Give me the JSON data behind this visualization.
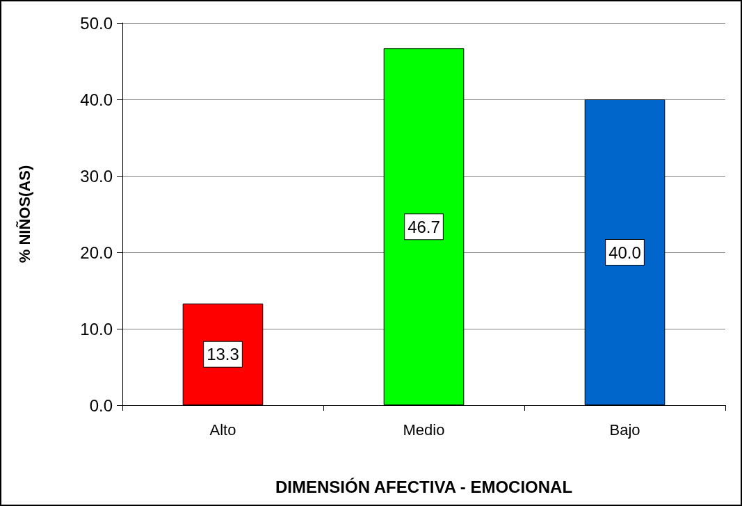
{
  "chart_data": {
    "type": "bar",
    "xlabel": "DIMENSIÓN AFECTIVA - EMOCIONAL",
    "ylabel": "% NIÑOS(AS)",
    "categories": [
      "Alto",
      "Medio",
      "Bajo"
    ],
    "values": [
      13.3,
      46.7,
      40.0
    ],
    "colors": [
      "#ff0000",
      "#00ff00",
      "#0066cc"
    ],
    "value_labels": [
      "13.3",
      "46.7",
      "40.0"
    ],
    "ylim": [
      0,
      50
    ],
    "yticks": [
      {
        "value": 0,
        "label": "0.0"
      },
      {
        "value": 10,
        "label": "10.0"
      },
      {
        "value": 20,
        "label": "20.0"
      },
      {
        "value": 30,
        "label": "30.0"
      },
      {
        "value": 40,
        "label": "40.0"
      },
      {
        "value": 50,
        "label": "50.0"
      }
    ],
    "grid": "y"
  }
}
